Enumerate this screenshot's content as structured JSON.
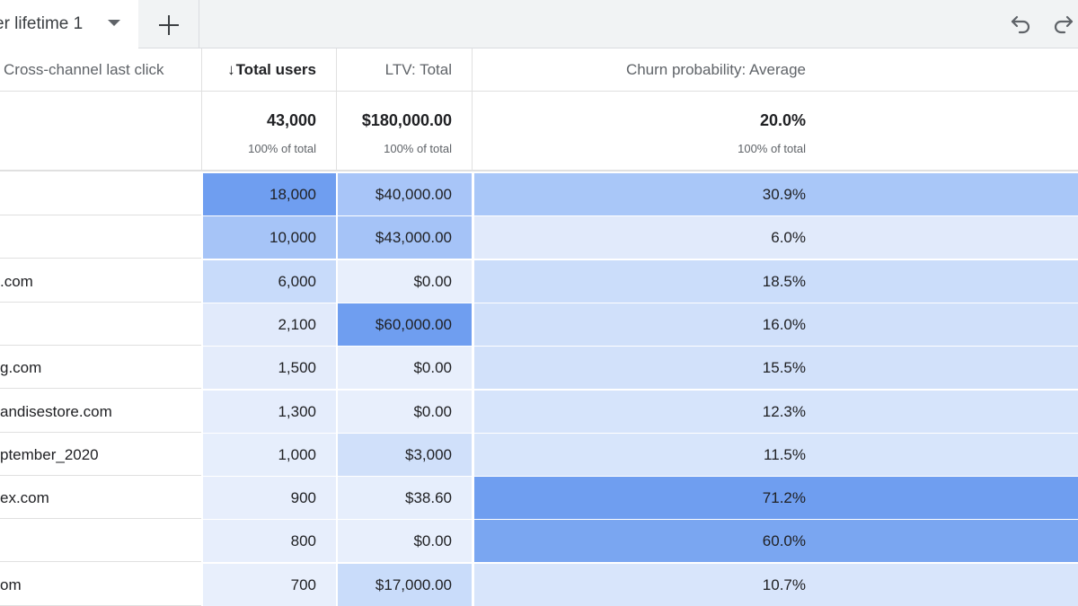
{
  "tabs": {
    "active_label": "er lifetime 1"
  },
  "icons": {
    "tab_menu": "caret-down-icon",
    "add_tab": "plus-icon",
    "undo": "undo-icon",
    "redo": "redo-icon",
    "sort": "arrow-down-icon"
  },
  "header": {
    "dimension": "Cross-channel last click",
    "sort_glyph": "↓",
    "total_users": "Total users",
    "ltv": "LTV: Total",
    "churn": "Churn probability: Average"
  },
  "totals": {
    "total_users": "43,000",
    "total_users_sub": "100% of total",
    "ltv": "$180,000.00",
    "ltv_sub": "100% of total",
    "churn": "20.0%",
    "churn_sub": "100% of total"
  },
  "rows": [
    {
      "dimension": "",
      "total_users": "18,000",
      "ltv": "$40,000.00",
      "churn": "30.9%",
      "users_color": "#6f9ef0",
      "ltv_color": "#a8c5f8",
      "churn_color": "#a9c7f8"
    },
    {
      "dimension": "",
      "total_users": "10,000",
      "ltv": "$43,000.00",
      "churn": "6.0%",
      "users_color": "#a6c4f7",
      "ltv_color": "#a5c3f7",
      "churn_color": "#e1eafb"
    },
    {
      "dimension": ".com",
      "total_users": "6,000",
      "ltv": "$0.00",
      "churn": "18.5%",
      "users_color": "#c8dbfa",
      "ltv_color": "#e8effc",
      "churn_color": "#cbddfa"
    },
    {
      "dimension": "",
      "total_users": "2,100",
      "ltv": "$60,000.00",
      "churn": "16.0%",
      "users_color": "#e1eafb",
      "ltv_color": "#6f9ef0",
      "churn_color": "#d0e0fa"
    },
    {
      "dimension": "g.com",
      "total_users": "1,500",
      "ltv": "$0.00",
      "churn": "15.5%",
      "users_color": "#e4ecfb",
      "ltv_color": "#e8effc",
      "churn_color": "#d2e1fa"
    },
    {
      "dimension": "andisestore.com",
      "total_users": "1,300",
      "ltv": "$0.00",
      "churn": "12.3%",
      "users_color": "#e5edfc",
      "ltv_color": "#e8effc",
      "churn_color": "#d6e4fb"
    },
    {
      "dimension": "ptember_2020",
      "total_users": "1,000",
      "ltv": "$3,000",
      "churn": "11.5%",
      "users_color": "#e6eefc",
      "ltv_color": "#d0e0fa",
      "churn_color": "#d7e5fb"
    },
    {
      "dimension": "ex.com",
      "total_users": "900",
      "ltv": "$38.60",
      "churn": "71.2%",
      "users_color": "#e7eefc",
      "ltv_color": "#e6eefc",
      "churn_color": "#6f9ef0"
    },
    {
      "dimension": "",
      "total_users": "800",
      "ltv": "$0.00",
      "churn": "60.0%",
      "users_color": "#e7eefc",
      "ltv_color": "#e8effc",
      "churn_color": "#7aa6f1"
    },
    {
      "dimension": "om",
      "total_users": "700",
      "ltv": "$17,000.00",
      "churn": "10.7%",
      "users_color": "#e8effc",
      "ltv_color": "#c9dcfa",
      "churn_color": "#d8e5fb"
    }
  ]
}
